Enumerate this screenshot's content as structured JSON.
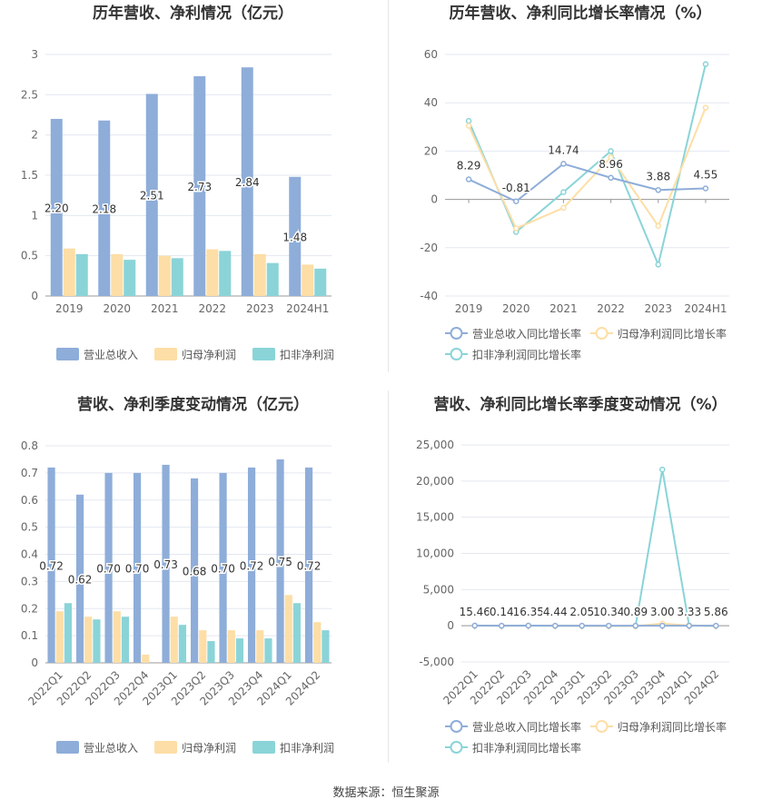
{
  "charts": [
    {
      "type": "bar",
      "title": "历年营收、净利情况（亿元）",
      "categories": [
        "2019",
        "2020",
        "2021",
        "2022",
        "2023",
        "2024H1"
      ],
      "ylim": [
        0,
        3
      ],
      "yticks": [
        "0",
        "0.5",
        "1",
        "1.5",
        "2",
        "2.5",
        "3"
      ],
      "ytick_values": [
        0,
        0.5,
        1,
        1.5,
        2,
        2.5,
        3
      ],
      "series": [
        {
          "name": "营业总收入",
          "color": "#8eadd9",
          "values": [
            2.2,
            2.18,
            2.51,
            2.73,
            2.84,
            1.48
          ],
          "labels": [
            "2.20",
            "2.18",
            "2.51",
            "2.73",
            "2.84",
            "1.48"
          ]
        },
        {
          "name": "归母净利润",
          "color": "#fddea6",
          "values": [
            0.59,
            0.52,
            0.5,
            0.58,
            0.52,
            0.39
          ]
        },
        {
          "name": "扣非净利润",
          "color": "#8ad4d8",
          "values": [
            0.52,
            0.45,
            0.47,
            0.56,
            0.41,
            0.34
          ]
        }
      ]
    },
    {
      "type": "line",
      "title": "历年营收、净利同比增长率情况（%）",
      "categories": [
        "2019",
        "2020",
        "2021",
        "2022",
        "2023",
        "2024H1"
      ],
      "ylim": [
        -40,
        60
      ],
      "yticks": [
        "-40",
        "-20",
        "0",
        "20",
        "40",
        "60"
      ],
      "ytick_values": [
        -40,
        -20,
        0,
        20,
        40,
        60
      ],
      "series": [
        {
          "name": "营业总收入同比增长率",
          "color": "#8eadd9",
          "values": [
            8.29,
            -0.81,
            14.74,
            8.96,
            3.88,
            4.55
          ],
          "labels": [
            "8.29",
            "-0.81",
            "14.74",
            "8.96",
            "3.88",
            "4.55"
          ]
        },
        {
          "name": "归母净利润同比增长率",
          "color": "#fddea6",
          "values": [
            30.5,
            -12.0,
            -3.5,
            17.5,
            -11.0,
            38.0
          ]
        },
        {
          "name": "扣非净利润同比增长率",
          "color": "#8ad4d8",
          "values": [
            32.5,
            -13.5,
            3.0,
            20.0,
            -27.0,
            56.0
          ]
        }
      ]
    },
    {
      "type": "bar",
      "title": "营收、净利季度变动情况（亿元）",
      "categories": [
        "2022Q1",
        "2022Q2",
        "2022Q3",
        "2022Q4",
        "2023Q1",
        "2023Q2",
        "2023Q3",
        "2023Q4",
        "2024Q1",
        "2024Q2"
      ],
      "ylim": [
        0,
        0.8
      ],
      "yticks": [
        "0",
        "0.1",
        "0.2",
        "0.3",
        "0.4",
        "0.5",
        "0.6",
        "0.7",
        "0.8"
      ],
      "ytick_values": [
        0,
        0.1,
        0.2,
        0.3,
        0.4,
        0.5,
        0.6,
        0.7,
        0.8
      ],
      "series": [
        {
          "name": "营业总收入",
          "color": "#8eadd9",
          "values": [
            0.72,
            0.62,
            0.7,
            0.7,
            0.73,
            0.68,
            0.7,
            0.72,
            0.75,
            0.72
          ],
          "labels": [
            "0.72",
            "0.62",
            "0.70",
            "0.70",
            "0.73",
            "0.68",
            "0.70",
            "0.72",
            "0.75",
            "0.72"
          ]
        },
        {
          "name": "归母净利润",
          "color": "#fddea6",
          "values": [
            0.19,
            0.17,
            0.19,
            0.03,
            0.17,
            0.12,
            0.12,
            0.12,
            0.25,
            0.15
          ]
        },
        {
          "name": "扣非净利润",
          "color": "#8ad4d8",
          "values": [
            0.22,
            0.16,
            0.17,
            0.0,
            0.14,
            0.08,
            0.09,
            0.09,
            0.22,
            0.12
          ]
        }
      ]
    },
    {
      "type": "line",
      "title": "营收、净利同比增长率季度变动情况（%）",
      "categories": [
        "2022Q1",
        "2022Q2",
        "2022Q3",
        "2022Q4",
        "2023Q1",
        "2023Q2",
        "2023Q3",
        "2023Q4",
        "2024Q1",
        "2024Q2"
      ],
      "ylim": [
        -5000,
        25000
      ],
      "yticks": [
        "-5,000",
        "0",
        "5,000",
        "10,000",
        "15,000",
        "20,000",
        "25,000"
      ],
      "ytick_values": [
        -5000,
        0,
        5000,
        10000,
        15000,
        20000,
        25000
      ],
      "series": [
        {
          "name": "营业总收入同比增长率",
          "color": "#8eadd9",
          "values": [
            15.46,
            0.14,
            16.35,
            4.44,
            2.05,
            10.34,
            0.89,
            3.0,
            3.33,
            5.86
          ],
          "labels": [
            "15.46",
            "0.14",
            "16.35",
            "4.44",
            "2.05",
            "10.34",
            "0.89",
            "3.00",
            "3.33",
            "5.86"
          ]
        },
        {
          "name": "归母净利润同比增长率",
          "color": "#fddea6",
          "values": [
            20,
            10,
            15,
            0,
            -10,
            -30,
            -35,
            300,
            40,
            -20
          ]
        },
        {
          "name": "扣非净利润同比增长率",
          "color": "#8ad4d8",
          "values": [
            25,
            5,
            10,
            -10,
            -20,
            -40,
            -45,
            21600,
            50,
            -25
          ]
        }
      ]
    }
  ],
  "footer": "数据来源：恒生聚源"
}
